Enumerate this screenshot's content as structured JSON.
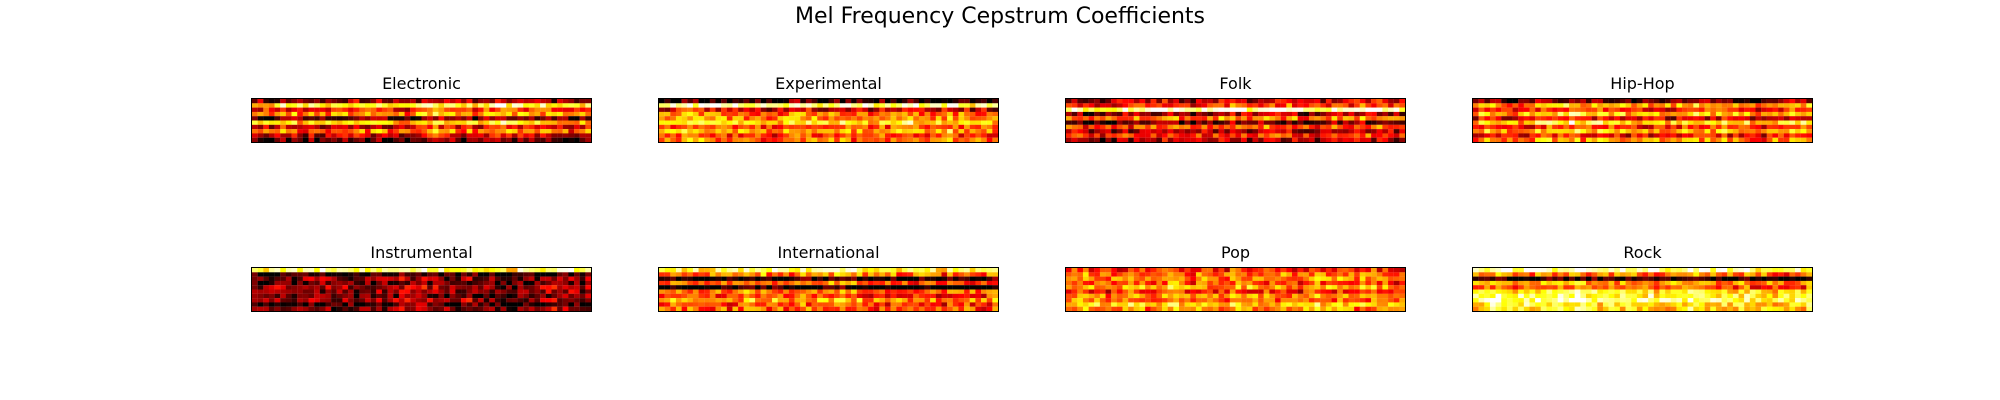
{
  "figure": {
    "title": "Mel Frequency Cepstrum Coefficients"
  },
  "chart_data": [
    {
      "type": "heatmap",
      "title": "Electronic",
      "rows": 10,
      "cols": 60,
      "seed": 11,
      "row_levels": [
        0.25,
        0.8,
        0.45,
        0.6,
        0.2,
        0.7,
        0.35,
        0.55,
        0.3,
        0.15
      ],
      "colormap": "hot",
      "axes_ticks": false
    },
    {
      "type": "heatmap",
      "title": "Experimental",
      "rows": 10,
      "cols": 60,
      "seed": 23,
      "row_levels": [
        0.08,
        0.9,
        0.35,
        0.55,
        0.6,
        0.75,
        0.5,
        0.65,
        0.45,
        0.55
      ],
      "colormap": "hot",
      "axes_ticks": false
    },
    {
      "type": "heatmap",
      "title": "Folk",
      "rows": 10,
      "cols": 60,
      "seed": 37,
      "row_levels": [
        0.3,
        0.45,
        0.95,
        0.25,
        0.55,
        0.15,
        0.5,
        0.3,
        0.45,
        0.25
      ],
      "colormap": "hot",
      "axes_ticks": false
    },
    {
      "type": "heatmap",
      "title": "Hip-Hop",
      "rows": 10,
      "cols": 60,
      "seed": 41,
      "row_levels": [
        0.15,
        0.6,
        0.4,
        0.65,
        0.3,
        0.7,
        0.4,
        0.6,
        0.35,
        0.55
      ],
      "colormap": "hot",
      "axes_ticks": false
    },
    {
      "type": "heatmap",
      "title": "Instrumental",
      "rows": 10,
      "cols": 60,
      "seed": 53,
      "row_levels": [
        0.9,
        0.1,
        0.25,
        0.2,
        0.3,
        0.25,
        0.2,
        0.3,
        0.15,
        0.25
      ],
      "colormap": "hot",
      "axes_ticks": false
    },
    {
      "type": "heatmap",
      "title": "International",
      "rows": 10,
      "cols": 60,
      "seed": 67,
      "row_levels": [
        0.85,
        0.6,
        0.1,
        0.55,
        0.05,
        0.6,
        0.5,
        0.65,
        0.5,
        0.55
      ],
      "colormap": "hot",
      "axes_ticks": false
    },
    {
      "type": "heatmap",
      "title": "Pop",
      "rows": 10,
      "cols": 60,
      "seed": 79,
      "row_levels": [
        0.45,
        0.55,
        0.6,
        0.5,
        0.65,
        0.45,
        0.6,
        0.55,
        0.7,
        0.6
      ],
      "colormap": "hot",
      "axes_ticks": false
    },
    {
      "type": "heatmap",
      "title": "Rock",
      "rows": 10,
      "cols": 60,
      "seed": 89,
      "row_levels": [
        0.9,
        0.55,
        0.05,
        0.6,
        0.5,
        0.75,
        0.8,
        0.85,
        0.75,
        0.7
      ],
      "colormap": "hot",
      "axes_ticks": false
    }
  ]
}
